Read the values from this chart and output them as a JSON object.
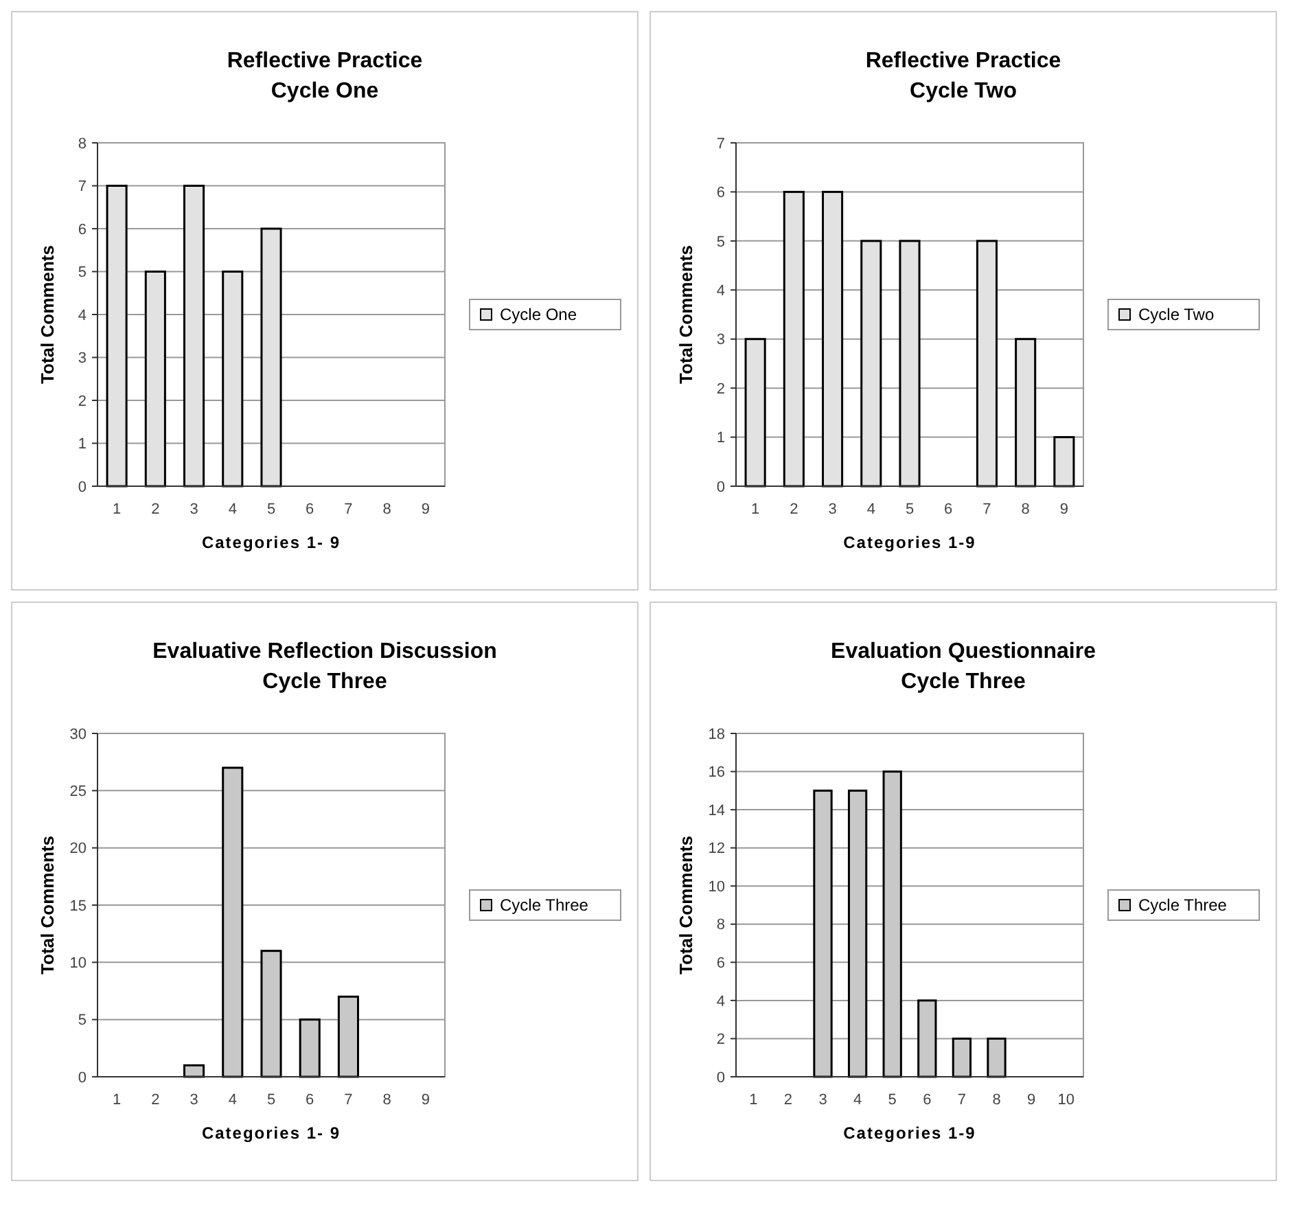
{
  "chart_data": [
    {
      "type": "bar",
      "title": "Reflective Practice",
      "subtitle": "Cycle One",
      "xlabel": "Categories 1- 9",
      "ylabel": "Total Comments",
      "categories": [
        "1",
        "2",
        "3",
        "4",
        "5",
        "6",
        "7",
        "8",
        "9"
      ],
      "series": [
        {
          "name": "Cycle One",
          "color": "#e2e2e2",
          "values": [
            7,
            5,
            7,
            5,
            6,
            0,
            0,
            0,
            0
          ]
        }
      ],
      "ylim": [
        0,
        8
      ],
      "yticks": [
        0,
        1,
        2,
        3,
        4,
        5,
        6,
        7,
        8
      ],
      "grid": "y",
      "legend": "right"
    },
    {
      "type": "bar",
      "title": "Reflective Practice",
      "subtitle": "Cycle Two",
      "xlabel": "Categories 1-9",
      "ylabel": "Total Comments",
      "categories": [
        "1",
        "2",
        "3",
        "4",
        "5",
        "6",
        "7",
        "8",
        "9"
      ],
      "series": [
        {
          "name": "Cycle Two",
          "color": "#e2e2e2",
          "values": [
            3,
            6,
            6,
            5,
            5,
            0,
            5,
            3,
            1
          ]
        }
      ],
      "ylim": [
        0,
        7
      ],
      "yticks": [
        0,
        1,
        2,
        3,
        4,
        5,
        6,
        7
      ],
      "grid": "y",
      "legend": "right"
    },
    {
      "type": "bar",
      "title": "Evaluative Reflection Discussion",
      "subtitle": "Cycle Three",
      "xlabel": "Categories 1- 9",
      "ylabel": "Total Comments",
      "categories": [
        "1",
        "2",
        "3",
        "4",
        "5",
        "6",
        "7",
        "8",
        "9"
      ],
      "series": [
        {
          "name": "Cycle Three",
          "color": "#c8c8c8",
          "values": [
            0,
            0,
            1,
            27,
            11,
            5,
            7,
            0,
            0
          ]
        }
      ],
      "ylim": [
        0,
        30
      ],
      "yticks": [
        0,
        5,
        10,
        15,
        20,
        25,
        30
      ],
      "grid": "y",
      "legend": "right"
    },
    {
      "type": "bar",
      "title": "Evaluation Questionnaire",
      "subtitle": "Cycle Three",
      "xlabel": "Categories 1-9",
      "ylabel": "Total Comments",
      "categories": [
        "1",
        "2",
        "3",
        "4",
        "5",
        "6",
        "7",
        "8",
        "9",
        "10"
      ],
      "series": [
        {
          "name": "Cycle Three",
          "color": "#c8c8c8",
          "values": [
            0,
            0,
            15,
            15,
            16,
            4,
            2,
            2,
            0,
            0
          ]
        }
      ],
      "ylim": [
        0,
        18
      ],
      "yticks": [
        0,
        2,
        4,
        6,
        8,
        10,
        12,
        14,
        16,
        18
      ],
      "grid": "y",
      "legend": "right"
    }
  ]
}
